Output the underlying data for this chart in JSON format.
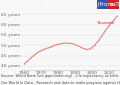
{
  "title": "Development of life expectancy (from Tanzania)",
  "line_color": "#e08080",
  "background_color": "#f8f8f8",
  "plot_bg_color": "#f8f8f8",
  "years": [
    1960,
    1961,
    1962,
    1963,
    1964,
    1965,
    1966,
    1967,
    1968,
    1969,
    1970,
    1971,
    1972,
    1973,
    1974,
    1975,
    1976,
    1977,
    1978,
    1979,
    1980,
    1981,
    1982,
    1983,
    1984,
    1985,
    1986,
    1987,
    1988,
    1989,
    1990,
    1991,
    1992,
    1993,
    1994,
    1995,
    1996,
    1997,
    1998,
    1999,
    2000,
    2001,
    2002,
    2003,
    2004,
    2005,
    2006,
    2007,
    2008,
    2009,
    2010,
    2011,
    2012,
    2013,
    2014,
    2015
  ],
  "life_exp": [
    41.0,
    41.8,
    42.5,
    43.3,
    44.0,
    44.7,
    45.4,
    46.0,
    46.6,
    47.1,
    47.5,
    47.9,
    48.2,
    48.5,
    48.8,
    49.1,
    49.4,
    49.7,
    50.0,
    50.3,
    50.5,
    50.7,
    50.9,
    51.0,
    51.1,
    51.1,
    51.1,
    51.0,
    50.9,
    50.7,
    50.4,
    50.1,
    49.7,
    49.3,
    48.9,
    48.5,
    48.2,
    48.1,
    48.1,
    48.4,
    48.9,
    49.6,
    50.4,
    51.4,
    52.4,
    53.5,
    54.7,
    55.9,
    57.1,
    58.2,
    59.3,
    60.3,
    61.3,
    62.2,
    63.1,
    64.2
  ],
  "yticks": [
    40,
    45,
    50,
    55,
    60,
    65
  ],
  "ytick_labels": [
    "40 years",
    "45 years",
    "50 years",
    "55 years",
    "60 years",
    "65 years"
  ],
  "xlim": [
    1958,
    2016
  ],
  "ylim": [
    38,
    67
  ],
  "xticks": [
    1960,
    1970,
    1980,
    1990,
    2000,
    2010
  ],
  "footer_line1": "Source: World Bank (via gapminder.org) - Life expectancy at birth, total (years)",
  "footer_line2": "Our World In Data - Research and data to make progress against the world's largest problems.",
  "label_color": "#cc2222",
  "label_text": "Tanzania",
  "title_bg_color": "#1a1a2e",
  "title_text_color": "#ffffff",
  "legend_bg": "#cc3333",
  "legend_text": "TZA",
  "tick_fontsize": 3.2,
  "title_fontsize": 4.2,
  "footer_fontsize": 2.5
}
